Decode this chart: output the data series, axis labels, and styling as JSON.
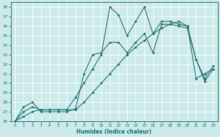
{
  "xlabel": "Humidex (Indice chaleur)",
  "xlim": [
    -0.5,
    23.5
  ],
  "ylim": [
    26,
    38.5
  ],
  "yticks": [
    26,
    27,
    28,
    29,
    30,
    31,
    32,
    33,
    34,
    35,
    36,
    37,
    38
  ],
  "xticks": [
    0,
    1,
    2,
    3,
    4,
    5,
    6,
    7,
    8,
    9,
    10,
    11,
    12,
    13,
    14,
    15,
    16,
    17,
    18,
    19,
    20,
    21,
    22,
    23
  ],
  "bg_color": "#cceaea",
  "line_color": "#1a6b6b",
  "grid_color": "#ffffff",
  "line1_x": [
    0,
    1,
    2,
    3,
    4,
    5,
    6,
    7,
    8,
    9,
    10,
    11,
    12,
    13,
    14,
    15,
    16,
    17,
    18,
    19,
    20,
    21,
    22,
    23
  ],
  "line1_y": [
    26,
    27.5,
    28,
    27,
    27,
    27,
    27,
    27.3,
    31,
    33,
    33.2,
    34.3,
    34.3,
    33.2,
    34.3,
    35.2,
    33.2,
    36.2,
    36.2,
    36.0,
    35.8,
    32.5,
    30.2,
    31.5
  ],
  "line2_x": [
    0,
    1,
    2,
    3,
    4,
    5,
    6,
    7,
    8,
    9,
    10,
    11,
    12,
    13,
    14,
    15,
    16,
    17,
    18,
    19,
    20,
    21,
    22,
    23
  ],
  "line2_y": [
    26,
    27,
    27.5,
    27.2,
    27.2,
    27.2,
    27.2,
    28.5,
    30,
    31.5,
    33,
    38,
    37.2,
    35,
    36.5,
    38,
    35.2,
    36.5,
    36.5,
    36.2,
    36,
    32.5,
    30.5,
    31.8
  ],
  "line3_x": [
    0,
    1,
    2,
    3,
    4,
    5,
    6,
    7,
    8,
    9,
    10,
    11,
    12,
    13,
    14,
    15,
    16,
    17,
    18,
    19,
    20,
    21,
    22,
    23
  ],
  "line3_y": [
    26,
    26.5,
    27,
    27.2,
    27.2,
    27.2,
    27.2,
    27.2,
    28,
    29,
    30,
    31,
    32,
    33,
    33.8,
    34.5,
    35.2,
    35.8,
    36.2,
    36.5,
    36,
    30.5,
    31,
    31.5
  ],
  "markersize": 2.0,
  "linewidth": 0.8
}
